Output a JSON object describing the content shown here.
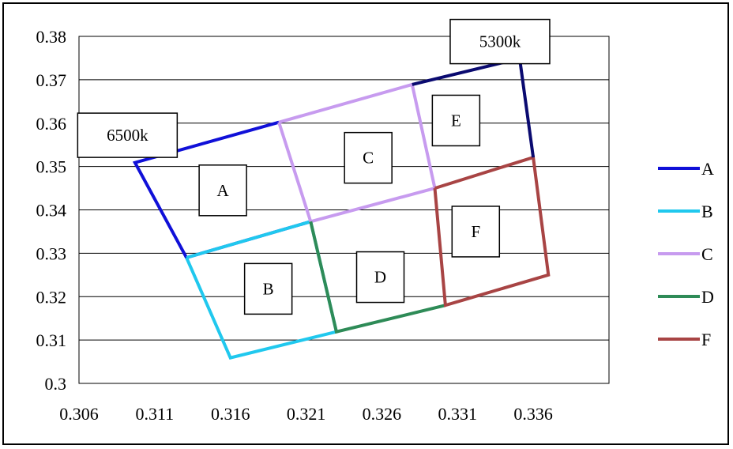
{
  "chart_data": {
    "type": "line",
    "title": "",
    "xlabel": "",
    "ylabel": "",
    "xlim": [
      0.306,
      0.341
    ],
    "ylim": [
      0.3,
      0.38
    ],
    "x_ticks": [
      "0.306",
      "0.311",
      "0.316",
      "0.321",
      "0.326",
      "0.331",
      "0.336"
    ],
    "y_ticks": [
      "0.3",
      "0.31",
      "0.32",
      "0.33",
      "0.34",
      "0.35",
      "0.36",
      "0.37",
      "0.38"
    ],
    "grid": "horizontal",
    "legend_position": "right",
    "series": [
      {
        "name": "A",
        "color": "#1010d8",
        "points": [
          [
            0.3192,
            0.3602
          ],
          [
            0.3097,
            0.3509
          ],
          [
            0.3131,
            0.329
          ],
          [
            0.3213,
            0.3373
          ]
        ]
      },
      {
        "name": "B",
        "color": "#20c8ee",
        "points": [
          [
            0.3131,
            0.329
          ],
          [
            0.3213,
            0.3373
          ],
          [
            0.323,
            0.3119
          ],
          [
            0.316,
            0.3059
          ],
          [
            0.3131,
            0.329
          ]
        ]
      },
      {
        "name": "C",
        "color": "#c79bef",
        "points": [
          [
            0.3192,
            0.3602
          ],
          [
            0.328,
            0.3689
          ],
          [
            0.3295,
            0.345
          ],
          [
            0.3213,
            0.3373
          ],
          [
            0.3192,
            0.3602
          ]
        ]
      },
      {
        "name": "D",
        "color": "#2e8b57",
        "points": [
          [
            0.3213,
            0.3373
          ],
          [
            0.323,
            0.3119
          ],
          [
            0.3302,
            0.318
          ]
        ]
      },
      {
        "name": "F",
        "color": "#a84444",
        "points": [
          [
            0.3295,
            0.345
          ],
          [
            0.336,
            0.3521
          ],
          [
            0.337,
            0.325
          ],
          [
            0.3302,
            0.318
          ],
          [
            0.3295,
            0.345
          ]
        ]
      },
      {
        "name": "",
        "color": "#0a0a70",
        "points": [
          [
            0.328,
            0.3689
          ],
          [
            0.3351,
            0.3749
          ],
          [
            0.336,
            0.3521
          ]
        ]
      }
    ],
    "annotations": [
      {
        "text": "6500k",
        "x": 0.3092,
        "y": 0.3572
      },
      {
        "text": "5300k",
        "x": 0.3338,
        "y": 0.3788
      },
      {
        "text": "A",
        "x": 0.3155,
        "y": 0.3445
      },
      {
        "text": "B",
        "x": 0.3185,
        "y": 0.3218
      },
      {
        "text": "C",
        "x": 0.3251,
        "y": 0.352
      },
      {
        "text": "D",
        "x": 0.3259,
        "y": 0.3245
      },
      {
        "text": "E",
        "x": 0.3309,
        "y": 0.3606
      },
      {
        "text": "F",
        "x": 0.3322,
        "y": 0.335
      }
    ]
  }
}
